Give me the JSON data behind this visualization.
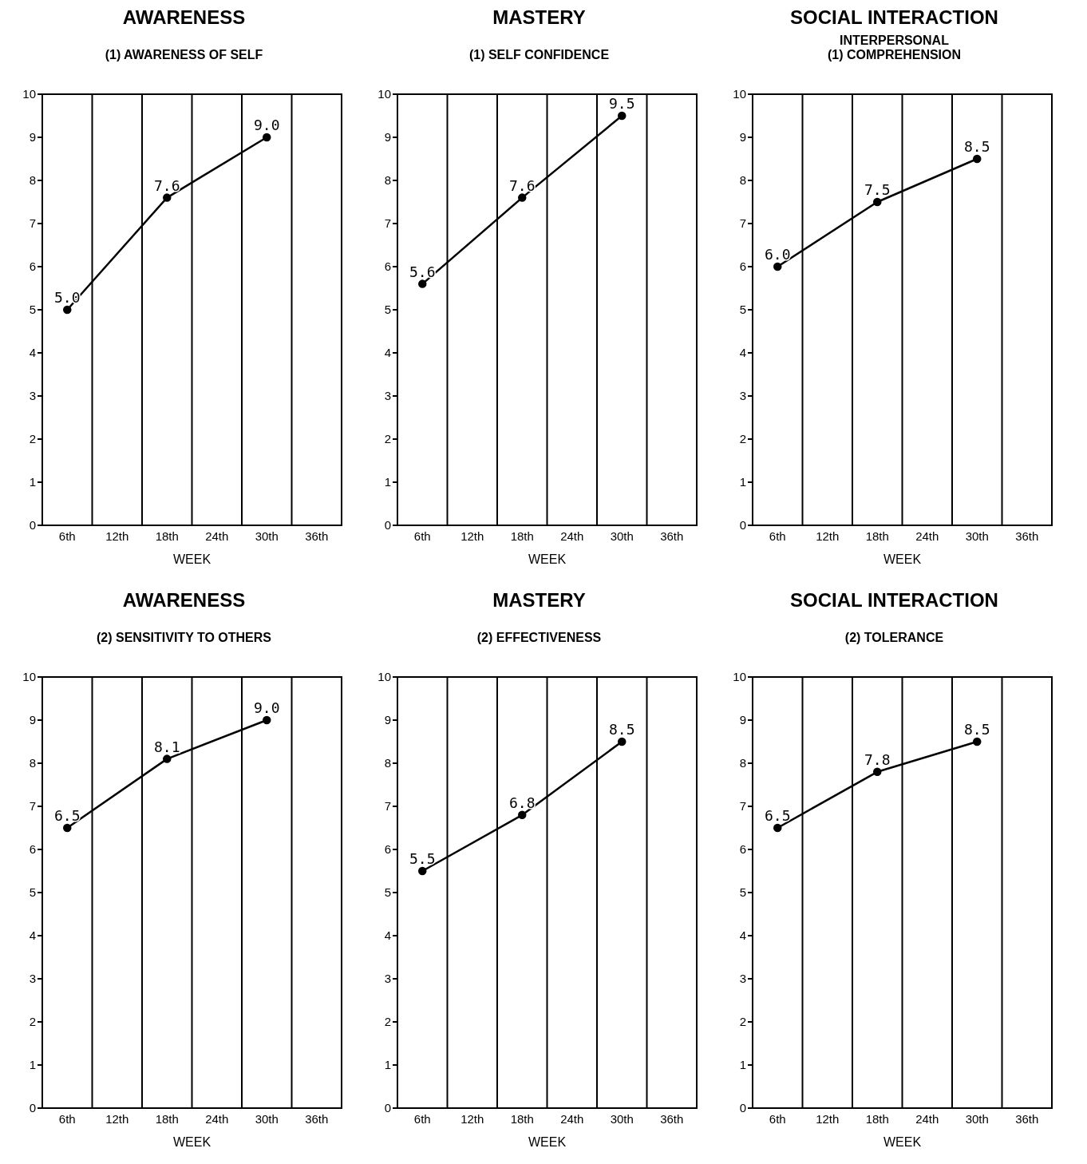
{
  "chart_data": [
    {
      "type": "line",
      "title": "AWARENESS",
      "subtitle": "(1) AWARENESS OF SELF",
      "xlabel": "WEEK",
      "categories": [
        "6th",
        "12th",
        "18th",
        "24th",
        "30th",
        "36th"
      ],
      "series": [
        {
          "color": "#000000",
          "values": [
            5.0,
            null,
            7.6,
            null,
            9.0,
            null
          ],
          "value_labels": [
            "5.0",
            null,
            "7.6",
            null,
            "9.0",
            null
          ]
        }
      ],
      "ylim": [
        0,
        10
      ],
      "yticks": [
        0,
        1,
        2,
        3,
        4,
        5,
        6,
        7,
        8,
        9,
        10
      ],
      "grid": "x",
      "marker": "circle",
      "line_style": "solid"
    },
    {
      "type": "line",
      "title": "MASTERY",
      "subtitle": "(1) SELF CONFIDENCE",
      "xlabel": "WEEK",
      "categories": [
        "6th",
        "12th",
        "18th",
        "24th",
        "30th",
        "36th"
      ],
      "series": [
        {
          "color": "#000000",
          "values": [
            5.6,
            null,
            7.6,
            null,
            9.5,
            null
          ],
          "value_labels": [
            "5.6",
            null,
            "7.6",
            null,
            "9.5",
            null
          ]
        }
      ],
      "ylim": [
        0,
        10
      ],
      "yticks": [
        0,
        1,
        2,
        3,
        4,
        5,
        6,
        7,
        8,
        9,
        10
      ],
      "grid": "x",
      "marker": "circle",
      "line_style": "solid"
    },
    {
      "type": "line",
      "title": "SOCIAL INTERACTION",
      "subtitle": "INTERPERSONAL\n(1) COMPREHENSION",
      "xlabel": "WEEK",
      "categories": [
        "6th",
        "12th",
        "18th",
        "24th",
        "30th",
        "36th"
      ],
      "series": [
        {
          "color": "#000000",
          "values": [
            6.0,
            null,
            7.5,
            null,
            8.5,
            null
          ],
          "value_labels": [
            "6.0",
            null,
            "7.5",
            null,
            "8.5",
            null
          ]
        }
      ],
      "ylim": [
        0,
        10
      ],
      "yticks": [
        0,
        1,
        2,
        3,
        4,
        5,
        6,
        7,
        8,
        9,
        10
      ],
      "grid": "x",
      "marker": "circle",
      "line_style": "solid"
    },
    {
      "type": "line",
      "title": "AWARENESS",
      "subtitle": "(2) SENSITIVITY TO OTHERS",
      "xlabel": "WEEK",
      "categories": [
        "6th",
        "12th",
        "18th",
        "24th",
        "30th",
        "36th"
      ],
      "series": [
        {
          "color": "#000000",
          "values": [
            6.5,
            null,
            8.1,
            null,
            9.0,
            null
          ],
          "value_labels": [
            "6.5",
            null,
            "8.1",
            null,
            "9.0",
            null
          ]
        }
      ],
      "ylim": [
        0,
        10
      ],
      "yticks": [
        0,
        1,
        2,
        3,
        4,
        5,
        6,
        7,
        8,
        9,
        10
      ],
      "grid": "x",
      "marker": "circle",
      "line_style": "solid"
    },
    {
      "type": "line",
      "title": "MASTERY",
      "subtitle": "(2) EFFECTIVENESS",
      "xlabel": "WEEK",
      "categories": [
        "6th",
        "12th",
        "18th",
        "24th",
        "30th",
        "36th"
      ],
      "series": [
        {
          "color": "#000000",
          "values": [
            5.5,
            null,
            6.8,
            null,
            8.5,
            null
          ],
          "value_labels": [
            "5.5",
            null,
            "6.8",
            null,
            "8.5",
            null
          ]
        }
      ],
      "ylim": [
        0,
        10
      ],
      "yticks": [
        0,
        1,
        2,
        3,
        4,
        5,
        6,
        7,
        8,
        9,
        10
      ],
      "grid": "x",
      "marker": "circle",
      "line_style": "solid"
    },
    {
      "type": "line",
      "title": "SOCIAL INTERACTION",
      "subtitle": "(2) TOLERANCE",
      "xlabel": "WEEK",
      "categories": [
        "6th",
        "12th",
        "18th",
        "24th",
        "30th",
        "36th"
      ],
      "series": [
        {
          "color": "#000000",
          "values": [
            6.5,
            null,
            7.8,
            null,
            8.5,
            null
          ],
          "value_labels": [
            "6.5",
            null,
            "7.8",
            null,
            "8.5",
            null
          ]
        }
      ],
      "ylim": [
        0,
        10
      ],
      "yticks": [
        0,
        1,
        2,
        3,
        4,
        5,
        6,
        7,
        8,
        9,
        10
      ],
      "grid": "x",
      "marker": "circle",
      "line_style": "solid"
    }
  ]
}
